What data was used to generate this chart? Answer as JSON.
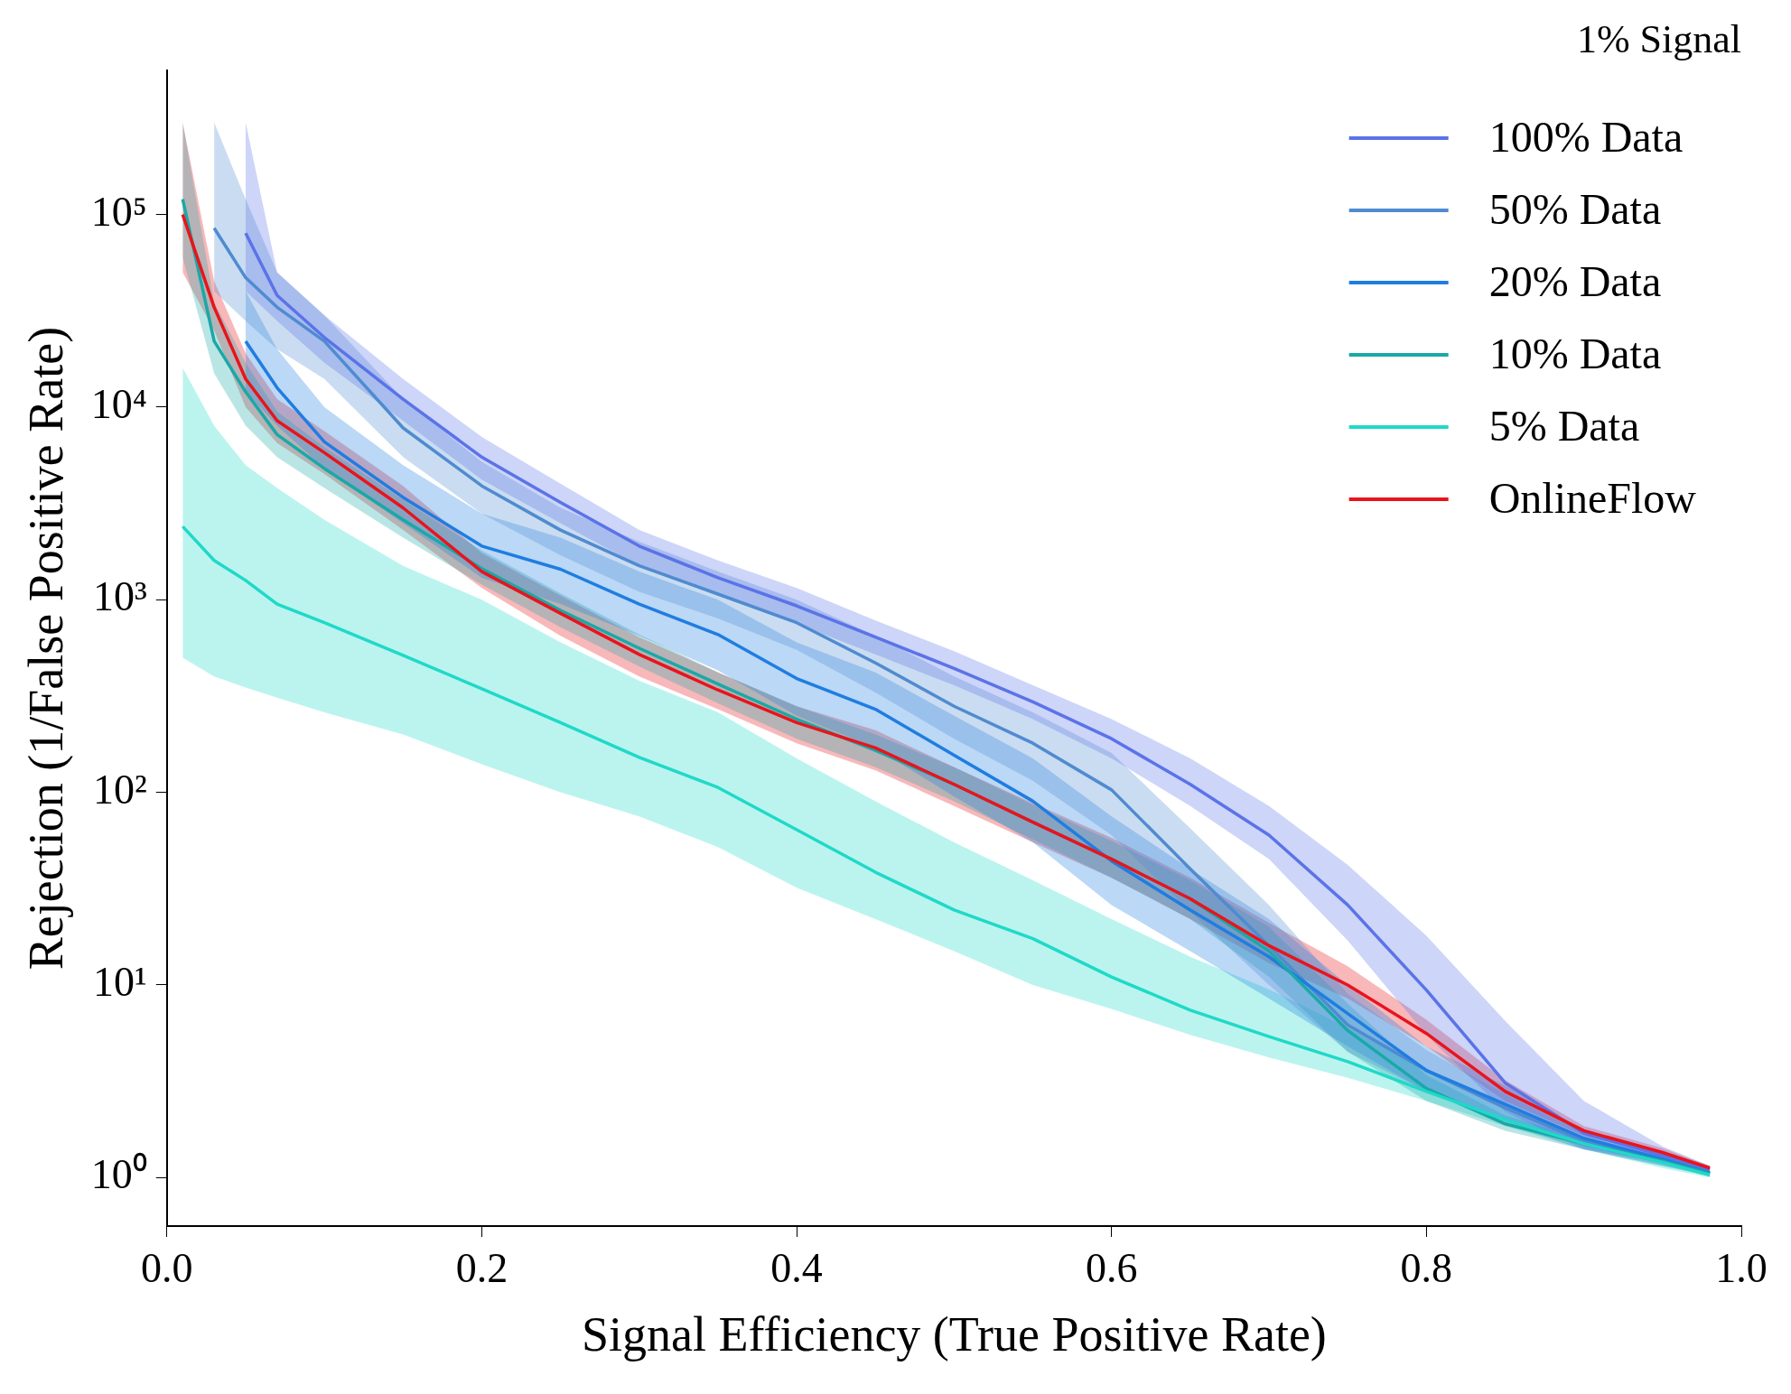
{
  "chart_data": {
    "type": "line",
    "xlabel": "Signal Efficiency (True Positive Rate)",
    "ylabel": "Rejection (1/False Positive Rate)",
    "annotations": [
      "1% Signal"
    ],
    "log": "y",
    "legend": "top right",
    "grid": false,
    "xlim": [
      0,
      1
    ],
    "xticks": [
      {
        "value": 0,
        "label": "0.0"
      },
      {
        "value": 0.2,
        "label": "0.2"
      },
      {
        "value": 0.4,
        "label": "0.4"
      },
      {
        "value": 0.6,
        "label": "0.6"
      },
      {
        "value": 0.8,
        "label": "0.8"
      },
      {
        "value": 1,
        "label": "1.0"
      }
    ],
    "ylim": [
      0.56,
      560000
    ],
    "yticks": [
      {
        "value": 1,
        "label": "10⁰"
      },
      {
        "value": 10,
        "label": "10¹"
      },
      {
        "value": 100,
        "label": "10²"
      },
      {
        "value": 1000,
        "label": "10³"
      },
      {
        "value": 10000,
        "label": "10⁴"
      },
      {
        "value": 100000,
        "label": "10⁵"
      }
    ],
    "x": [
      0.01,
      0.03,
      0.05,
      0.07,
      0.1,
      0.15,
      0.2,
      0.25,
      0.3,
      0.35,
      0.4,
      0.45,
      0.5,
      0.55,
      0.6,
      0.65,
      0.7,
      0.75,
      0.8,
      0.85,
      0.9,
      0.95,
      0.98
    ],
    "series": [
      {
        "name": "100% Data",
        "color": "#5b73e8",
        "values": [
          null,
          null,
          80000,
          38000,
          23000,
          11000,
          5500,
          3200,
          1900,
          1300,
          930,
          640,
          440,
          295,
          190,
          110,
          60,
          26,
          9.4,
          3.1,
          1.7,
          1.3,
          1.1
        ],
        "lower": [
          null,
          null,
          40000,
          28000,
          17000,
          8500,
          4200,
          2500,
          1500,
          1050,
          750,
          520,
          360,
          240,
          150,
          85,
          45,
          17,
          5.5,
          2.2,
          1.4,
          1.2,
          1.05
        ],
        "upper": [
          null,
          null,
          300000,
          50000,
          30000,
          14000,
          7000,
          4000,
          2300,
          1600,
          1150,
          780,
          540,
          360,
          240,
          150,
          85,
          42,
          18,
          6.5,
          2.5,
          1.45,
          1.15
        ]
      },
      {
        "name": "50% Data",
        "color": "#4f8bd0",
        "values": [
          null,
          85000,
          47000,
          33000,
          22000,
          7800,
          3900,
          2300,
          1500,
          1070,
          760,
          470,
          280,
          180,
          103,
          40,
          16,
          6.2,
          3.6,
          2.3,
          1.55,
          1.22,
          1.05
        ],
        "lower": [
          null,
          40000,
          28000,
          20000,
          14000,
          5500,
          2800,
          1700,
          1100,
          800,
          550,
          330,
          190,
          115,
          60,
          24,
          10,
          4.5,
          2.8,
          1.9,
          1.4,
          1.15,
          1.02
        ],
        "upper": [
          null,
          300000,
          120000,
          50000,
          30000,
          11000,
          5200,
          3000,
          2000,
          1400,
          1000,
          650,
          400,
          260,
          160,
          65,
          26,
          9,
          4.6,
          2.7,
          1.7,
          1.3,
          1.08
        ]
      },
      {
        "name": "20% Data",
        "color": "#1f7de0",
        "values": [
          null,
          null,
          22000,
          12600,
          6600,
          3400,
          1900,
          1440,
          950,
          660,
          390,
          270,
          156,
          90,
          44,
          24.5,
          14,
          7.1,
          3.6,
          2.4,
          1.6,
          1.25,
          1.06
        ],
        "lower": [
          null,
          null,
          12000,
          8000,
          4800,
          2500,
          1300,
          950,
          650,
          430,
          250,
          170,
          95,
          55,
          26,
          15,
          8.5,
          4.8,
          2.8,
          2,
          1.45,
          1.18,
          1.03
        ],
        "upper": [
          null,
          null,
          40000,
          20000,
          10000,
          5000,
          2800,
          2100,
          1400,
          1000,
          600,
          420,
          250,
          150,
          75,
          40,
          22,
          10,
          4.8,
          3,
          1.75,
          1.32,
          1.09
        ]
      },
      {
        "name": "10% Data",
        "color": "#1aa8a8",
        "values": [
          120000,
          22000,
          12000,
          7200,
          4800,
          2600,
          1450,
          880,
          560,
          365,
          240,
          165,
          110,
          70,
          45,
          28,
          15,
          5.8,
          2.9,
          1.9,
          1.5,
          1.22,
          1.05
        ],
        "lower": [
          60000,
          15000,
          8000,
          5500,
          3800,
          2100,
          1200,
          720,
          450,
          290,
          190,
          135,
          90,
          57,
          36,
          22,
          11,
          4.5,
          2.5,
          1.75,
          1.4,
          1.15,
          1.02
        ],
        "upper": [
          300000,
          35000,
          17000,
          9500,
          6200,
          3300,
          1800,
          1080,
          660,
          420,
          280,
          200,
          135,
          86,
          56,
          35,
          20,
          8,
          3.4,
          2.1,
          1.6,
          1.28,
          1.08
        ]
      },
      {
        "name": "5% Data",
        "color": "#1fd9c8",
        "values": [
          2400,
          1600,
          1260,
          950,
          760,
          515,
          345,
          230,
          152,
          106,
          64,
          38.5,
          24.5,
          17.4,
          11,
          7.4,
          5.4,
          4,
          2.8,
          2,
          1.5,
          1.2,
          1.03
        ],
        "lower": [
          500,
          400,
          350,
          310,
          260,
          200,
          140,
          100,
          75,
          52,
          32,
          22,
          15,
          10,
          7.5,
          5.5,
          4.2,
          3.3,
          2.5,
          1.85,
          1.4,
          1.12,
          1
        ],
        "upper": [
          16000,
          8000,
          5000,
          3800,
          2600,
          1500,
          1000,
          600,
          380,
          260,
          150,
          90,
          55,
          35,
          22,
          14,
          9.5,
          6,
          3.6,
          2.3,
          1.6,
          1.25,
          1.06
        ]
      },
      {
        "name": "OnlineFlow",
        "color": "#e8141c",
        "values": [
          100000,
          33000,
          14000,
          8500,
          5800,
          3000,
          1400,
          850,
          520,
          340,
          230,
          170,
          110,
          70,
          45,
          28,
          16,
          10,
          5.6,
          2.8,
          1.75,
          1.35,
          1.12
        ],
        "lower": [
          50000,
          25000,
          10000,
          6500,
          4500,
          2300,
          1150,
          650,
          400,
          270,
          180,
          130,
          85,
          55,
          36,
          22,
          13,
          8.5,
          4.8,
          2.5,
          1.65,
          1.3,
          1.09
        ],
        "upper": [
          300000,
          45000,
          19000,
          11000,
          7500,
          3900,
          1750,
          1050,
          640,
          420,
          280,
          210,
          135,
          88,
          58,
          36,
          21,
          12.5,
          6.6,
          3.2,
          1.85,
          1.42,
          1.15
        ]
      }
    ]
  }
}
